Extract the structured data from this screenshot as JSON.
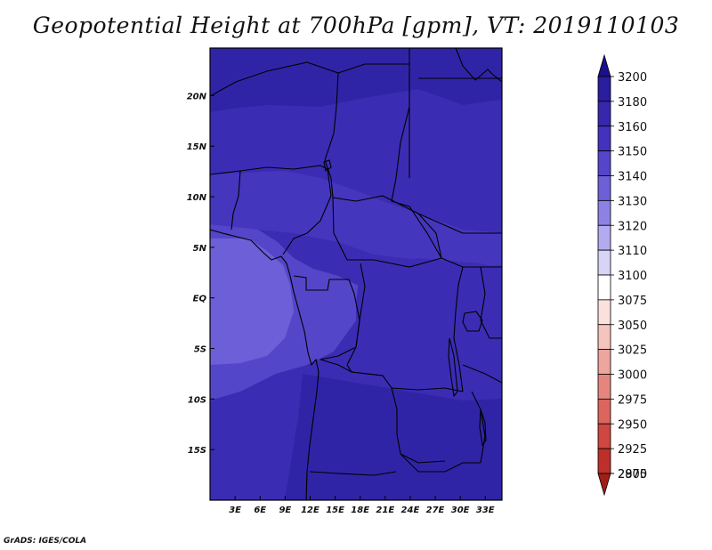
{
  "title": "Geopotential Height at 700hPa [gpm], VT: 2019110103",
  "footer": "GrADS: IGES/COLA",
  "map": {
    "lon_min": 0,
    "lon_max": 35,
    "lat_min": -20,
    "lat_max": 24.7,
    "lon_ticks": [
      {
        "lon": 3,
        "label": "3E"
      },
      {
        "lon": 6,
        "label": "6E"
      },
      {
        "lon": 9,
        "label": "9E"
      },
      {
        "lon": 12,
        "label": "12E"
      },
      {
        "lon": 15,
        "label": "15E"
      },
      {
        "lon": 18,
        "label": "18E"
      },
      {
        "lon": 21,
        "label": "21E"
      },
      {
        "lon": 24,
        "label": "24E"
      },
      {
        "lon": 27,
        "label": "27E"
      },
      {
        "lon": 30,
        "label": "30E"
      },
      {
        "lon": 33,
        "label": "33E"
      }
    ],
    "lat_ticks": [
      {
        "lat": 20,
        "label": "20N"
      },
      {
        "lat": 15,
        "label": "15N"
      },
      {
        "lat": 10,
        "label": "10N"
      },
      {
        "lat": 5,
        "label": "5N"
      },
      {
        "lat": 0,
        "label": "EQ"
      },
      {
        "lat": -5,
        "label": "5S"
      },
      {
        "lat": -10,
        "label": "10S"
      },
      {
        "lat": -15,
        "label": "15S"
      }
    ]
  },
  "colorbar": {
    "levels": [
      {
        "label": "3200",
        "color": "#1a0f8c"
      },
      {
        "label": "3180",
        "color": "#2a1d9e"
      },
      {
        "label": "3160",
        "color": "#3727ad"
      },
      {
        "label": "3150",
        "color": "#4232bd"
      },
      {
        "label": "3140",
        "color": "#5445cb"
      },
      {
        "label": "3130",
        "color": "#6d5fd8"
      },
      {
        "label": "3120",
        "color": "#8d82e4"
      },
      {
        "label": "3110",
        "color": "#b2abef"
      },
      {
        "label": "3100",
        "color": "#d7d4f7"
      },
      {
        "label": "3075",
        "color": "#ffffff"
      },
      {
        "label": "3050",
        "color": "#fbe1de"
      },
      {
        "label": "3025",
        "color": "#f5c4bf"
      },
      {
        "label": "3000",
        "color": "#eea59f"
      },
      {
        "label": "2975",
        "color": "#e5857e"
      },
      {
        "label": "2950",
        "color": "#dc655d"
      },
      {
        "label": "2925",
        "color": "#cf4740"
      },
      {
        "label": "2900",
        "color": "#bd2f29"
      },
      {
        "label": "2875",
        "color": "#a11e18"
      }
    ]
  },
  "field_colors": {
    "c3180": "#3024a6",
    "c3160": "#3a2db4",
    "c3150": "#4536be",
    "c3140": "#5446c8",
    "c3130": "#6d5fd8"
  }
}
